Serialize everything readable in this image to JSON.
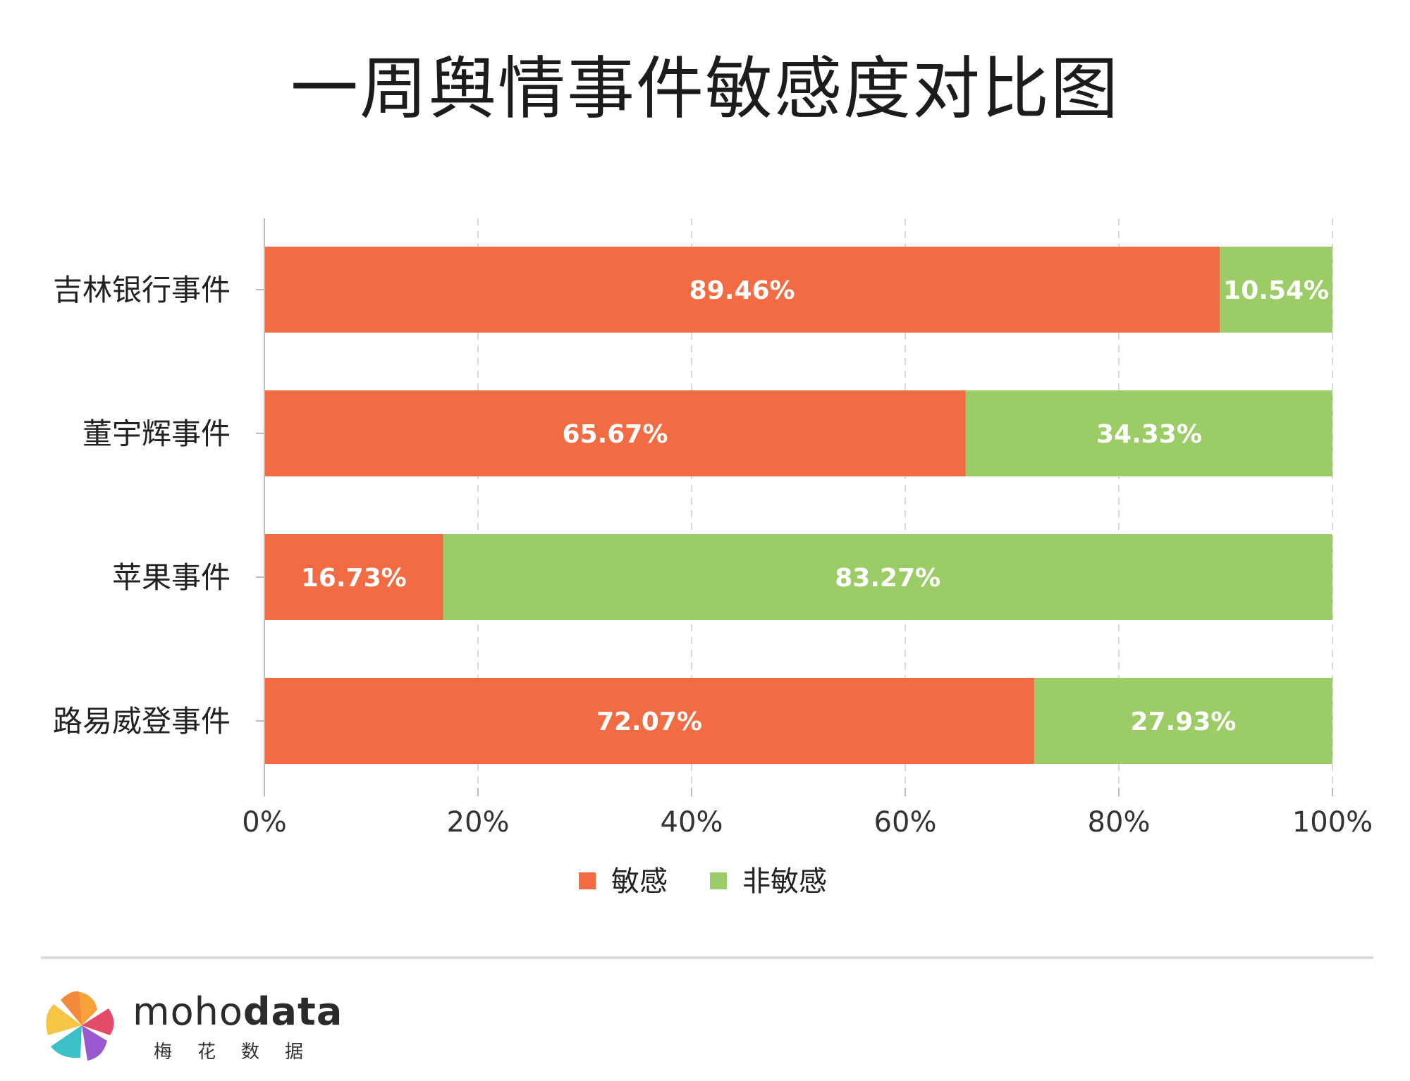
{
  "page": {
    "title": "一周舆情事件敏感度对比图"
  },
  "chart_data": {
    "type": "bar",
    "orientation": "horizontal",
    "stacked": true,
    "title": "一周舆情事件敏感度对比图",
    "categories": [
      "吉林银行事件",
      "董宇辉事件",
      "苹果事件",
      "路易威登事件"
    ],
    "series": [
      {
        "name": "敏感",
        "color": "#f26b43",
        "values": [
          89.46,
          65.67,
          16.73,
          72.07
        ],
        "labels": [
          "89.46%",
          "65.67%",
          "16.73%",
          "72.07%"
        ]
      },
      {
        "name": "非敏感",
        "color": "#9ccc65",
        "values": [
          10.54,
          34.33,
          83.27,
          27.93
        ],
        "labels": [
          "10.54%",
          "34.33%",
          "83.27%",
          "27.93%"
        ]
      }
    ],
    "xlim": [
      0,
      100
    ],
    "x_ticks": [
      "0%",
      "20%",
      "40%",
      "60%",
      "80%",
      "100%"
    ],
    "grid": true,
    "legend": "bottom-center"
  },
  "footer": {
    "brand_light": "moho",
    "brand_bold": "data",
    "brand_sub": "梅花数据"
  }
}
